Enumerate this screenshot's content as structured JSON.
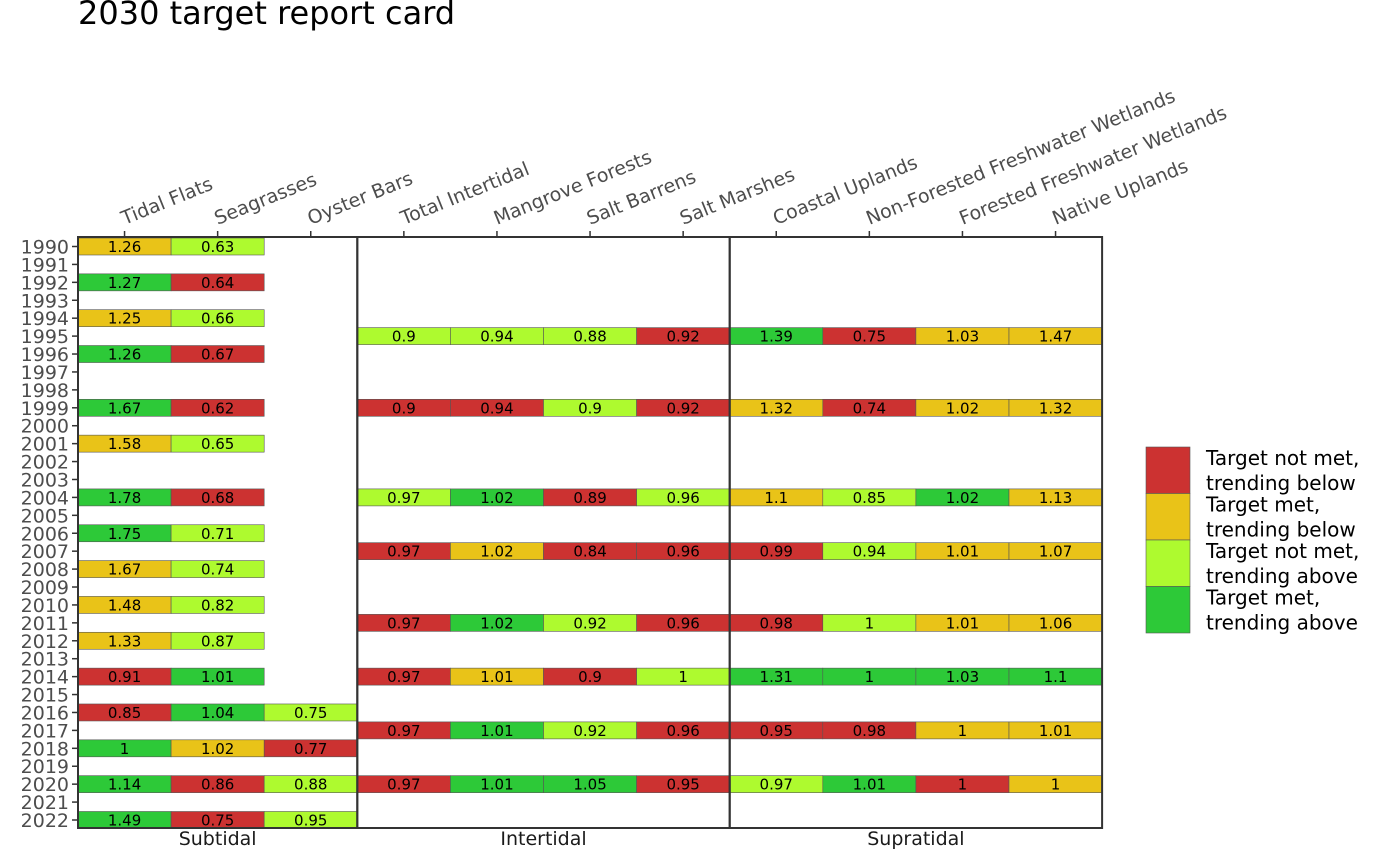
{
  "chart_data": {
    "type": "heatmap",
    "title": "2030 target report card",
    "years": [
      1990,
      1991,
      1992,
      1993,
      1994,
      1995,
      1996,
      1997,
      1998,
      1999,
      2000,
      2001,
      2002,
      2003,
      2004,
      2005,
      2006,
      2007,
      2008,
      2009,
      2010,
      2011,
      2012,
      2013,
      2014,
      2015,
      2016,
      2017,
      2018,
      2019,
      2020,
      2021,
      2022
    ],
    "columns": [
      "Tidal Flats",
      "Seagrasses",
      "Oyster Bars",
      "Total Intertidal",
      "Mangrove Forests",
      "Salt Barrens",
      "Salt Marshes",
      "Coastal Uplands",
      "Non-Forested Freshwater Wetlands",
      "Forested Freshwater Wetlands",
      "Native Uplands"
    ],
    "panels": [
      {
        "label": "Subtidal",
        "columns": [
          "Tidal Flats",
          "Seagrasses",
          "Oyster Bars"
        ]
      },
      {
        "label": "Intertidal",
        "columns": [
          "Total Intertidal",
          "Mangrove Forests",
          "Salt Barrens",
          "Salt Marshes"
        ]
      },
      {
        "label": "Supratidal",
        "columns": [
          "Coastal Uplands",
          "Non-Forested Freshwater Wetlands",
          "Forested Freshwater Wetlands",
          "Native Uplands"
        ]
      }
    ],
    "legend": {
      "position": "right",
      "entries": [
        {
          "key": "nmb",
          "label": [
            "Target not met,",
            "trending below"
          ],
          "color": "#CC3231"
        },
        {
          "key": "mb",
          "label": [
            "Target met,",
            "trending below"
          ],
          "color": "#E9C318"
        },
        {
          "key": "nma",
          "label": [
            "Target not met,",
            "trending above"
          ],
          "color": "#AEFA2F"
        },
        {
          "key": "ma",
          "label": [
            "Target met,",
            "trending above"
          ],
          "color": "#2DC938"
        }
      ]
    },
    "cells": [
      {
        "year": 1990,
        "column": "Tidal Flats",
        "value": "1.26",
        "status": "mb"
      },
      {
        "year": 1990,
        "column": "Seagrasses",
        "value": "0.63",
        "status": "nma"
      },
      {
        "year": 1992,
        "column": "Tidal Flats",
        "value": "1.27",
        "status": "ma"
      },
      {
        "year": 1992,
        "column": "Seagrasses",
        "value": "0.64",
        "status": "nmb"
      },
      {
        "year": 1994,
        "column": "Tidal Flats",
        "value": "1.25",
        "status": "mb"
      },
      {
        "year": 1994,
        "column": "Seagrasses",
        "value": "0.66",
        "status": "nma"
      },
      {
        "year": 1995,
        "column": "Total Intertidal",
        "value": "0.9",
        "status": "nma"
      },
      {
        "year": 1995,
        "column": "Mangrove Forests",
        "value": "0.94",
        "status": "nma"
      },
      {
        "year": 1995,
        "column": "Salt Barrens",
        "value": "0.88",
        "status": "nma"
      },
      {
        "year": 1995,
        "column": "Salt Marshes",
        "value": "0.92",
        "status": "nmb"
      },
      {
        "year": 1995,
        "column": "Coastal Uplands",
        "value": "1.39",
        "status": "ma"
      },
      {
        "year": 1995,
        "column": "Non-Forested Freshwater Wetlands",
        "value": "0.75",
        "status": "nmb"
      },
      {
        "year": 1995,
        "column": "Forested Freshwater Wetlands",
        "value": "1.03",
        "status": "mb"
      },
      {
        "year": 1995,
        "column": "Native Uplands",
        "value": "1.47",
        "status": "mb"
      },
      {
        "year": 1996,
        "column": "Tidal Flats",
        "value": "1.26",
        "status": "ma"
      },
      {
        "year": 1996,
        "column": "Seagrasses",
        "value": "0.67",
        "status": "nmb"
      },
      {
        "year": 1999,
        "column": "Tidal Flats",
        "value": "1.67",
        "status": "ma"
      },
      {
        "year": 1999,
        "column": "Seagrasses",
        "value": "0.62",
        "status": "nmb"
      },
      {
        "year": 1999,
        "column": "Total Intertidal",
        "value": "0.9",
        "status": "nmb"
      },
      {
        "year": 1999,
        "column": "Mangrove Forests",
        "value": "0.94",
        "status": "nmb"
      },
      {
        "year": 1999,
        "column": "Salt Barrens",
        "value": "0.9",
        "status": "nma"
      },
      {
        "year": 1999,
        "column": "Salt Marshes",
        "value": "0.92",
        "status": "nmb"
      },
      {
        "year": 1999,
        "column": "Coastal Uplands",
        "value": "1.32",
        "status": "mb"
      },
      {
        "year": 1999,
        "column": "Non-Forested Freshwater Wetlands",
        "value": "0.74",
        "status": "nmb"
      },
      {
        "year": 1999,
        "column": "Forested Freshwater Wetlands",
        "value": "1.02",
        "status": "mb"
      },
      {
        "year": 1999,
        "column": "Native Uplands",
        "value": "1.32",
        "status": "mb"
      },
      {
        "year": 2001,
        "column": "Tidal Flats",
        "value": "1.58",
        "status": "mb"
      },
      {
        "year": 2001,
        "column": "Seagrasses",
        "value": "0.65",
        "status": "nma"
      },
      {
        "year": 2004,
        "column": "Tidal Flats",
        "value": "1.78",
        "status": "ma"
      },
      {
        "year": 2004,
        "column": "Seagrasses",
        "value": "0.68",
        "status": "nmb"
      },
      {
        "year": 2004,
        "column": "Total Intertidal",
        "value": "0.97",
        "status": "nma"
      },
      {
        "year": 2004,
        "column": "Mangrove Forests",
        "value": "1.02",
        "status": "ma"
      },
      {
        "year": 2004,
        "column": "Salt Barrens",
        "value": "0.89",
        "status": "nmb"
      },
      {
        "year": 2004,
        "column": "Salt Marshes",
        "value": "0.96",
        "status": "nma"
      },
      {
        "year": 2004,
        "column": "Coastal Uplands",
        "value": "1.1",
        "status": "mb"
      },
      {
        "year": 2004,
        "column": "Non-Forested Freshwater Wetlands",
        "value": "0.85",
        "status": "nma"
      },
      {
        "year": 2004,
        "column": "Forested Freshwater Wetlands",
        "value": "1.02",
        "status": "ma"
      },
      {
        "year": 2004,
        "column": "Native Uplands",
        "value": "1.13",
        "status": "mb"
      },
      {
        "year": 2006,
        "column": "Tidal Flats",
        "value": "1.75",
        "status": "ma"
      },
      {
        "year": 2006,
        "column": "Seagrasses",
        "value": "0.71",
        "status": "nma"
      },
      {
        "year": 2007,
        "column": "Total Intertidal",
        "value": "0.97",
        "status": "nmb"
      },
      {
        "year": 2007,
        "column": "Mangrove Forests",
        "value": "1.02",
        "status": "mb"
      },
      {
        "year": 2007,
        "column": "Salt Barrens",
        "value": "0.84",
        "status": "nmb"
      },
      {
        "year": 2007,
        "column": "Salt Marshes",
        "value": "0.96",
        "status": "nmb"
      },
      {
        "year": 2007,
        "column": "Coastal Uplands",
        "value": "0.99",
        "status": "nmb"
      },
      {
        "year": 2007,
        "column": "Non-Forested Freshwater Wetlands",
        "value": "0.94",
        "status": "nma"
      },
      {
        "year": 2007,
        "column": "Forested Freshwater Wetlands",
        "value": "1.01",
        "status": "mb"
      },
      {
        "year": 2007,
        "column": "Native Uplands",
        "value": "1.07",
        "status": "mb"
      },
      {
        "year": 2008,
        "column": "Tidal Flats",
        "value": "1.67",
        "status": "mb"
      },
      {
        "year": 2008,
        "column": "Seagrasses",
        "value": "0.74",
        "status": "nma"
      },
      {
        "year": 2010,
        "column": "Tidal Flats",
        "value": "1.48",
        "status": "mb"
      },
      {
        "year": 2010,
        "column": "Seagrasses",
        "value": "0.82",
        "status": "nma"
      },
      {
        "year": 2011,
        "column": "Total Intertidal",
        "value": "0.97",
        "status": "nmb"
      },
      {
        "year": 2011,
        "column": "Mangrove Forests",
        "value": "1.02",
        "status": "ma"
      },
      {
        "year": 2011,
        "column": "Salt Barrens",
        "value": "0.92",
        "status": "nma"
      },
      {
        "year": 2011,
        "column": "Salt Marshes",
        "value": "0.96",
        "status": "nmb"
      },
      {
        "year": 2011,
        "column": "Coastal Uplands",
        "value": "0.98",
        "status": "nmb"
      },
      {
        "year": 2011,
        "column": "Non-Forested Freshwater Wetlands",
        "value": "1",
        "status": "nma"
      },
      {
        "year": 2011,
        "column": "Forested Freshwater Wetlands",
        "value": "1.01",
        "status": "mb"
      },
      {
        "year": 2011,
        "column": "Native Uplands",
        "value": "1.06",
        "status": "mb"
      },
      {
        "year": 2012,
        "column": "Tidal Flats",
        "value": "1.33",
        "status": "mb"
      },
      {
        "year": 2012,
        "column": "Seagrasses",
        "value": "0.87",
        "status": "nma"
      },
      {
        "year": 2014,
        "column": "Tidal Flats",
        "value": "0.91",
        "status": "nmb"
      },
      {
        "year": 2014,
        "column": "Seagrasses",
        "value": "1.01",
        "status": "ma"
      },
      {
        "year": 2014,
        "column": "Total Intertidal",
        "value": "0.97",
        "status": "nmb"
      },
      {
        "year": 2014,
        "column": "Mangrove Forests",
        "value": "1.01",
        "status": "mb"
      },
      {
        "year": 2014,
        "column": "Salt Barrens",
        "value": "0.9",
        "status": "nmb"
      },
      {
        "year": 2014,
        "column": "Salt Marshes",
        "value": "1",
        "status": "nma"
      },
      {
        "year": 2014,
        "column": "Coastal Uplands",
        "value": "1.31",
        "status": "ma"
      },
      {
        "year": 2014,
        "column": "Non-Forested Freshwater Wetlands",
        "value": "1",
        "status": "ma"
      },
      {
        "year": 2014,
        "column": "Forested Freshwater Wetlands",
        "value": "1.03",
        "status": "ma"
      },
      {
        "year": 2014,
        "column": "Native Uplands",
        "value": "1.1",
        "status": "ma"
      },
      {
        "year": 2016,
        "column": "Tidal Flats",
        "value": "0.85",
        "status": "nmb"
      },
      {
        "year": 2016,
        "column": "Seagrasses",
        "value": "1.04",
        "status": "ma"
      },
      {
        "year": 2016,
        "column": "Oyster Bars",
        "value": "0.75",
        "status": "nma"
      },
      {
        "year": 2017,
        "column": "Total Intertidal",
        "value": "0.97",
        "status": "nmb"
      },
      {
        "year": 2017,
        "column": "Mangrove Forests",
        "value": "1.01",
        "status": "ma"
      },
      {
        "year": 2017,
        "column": "Salt Barrens",
        "value": "0.92",
        "status": "nma"
      },
      {
        "year": 2017,
        "column": "Salt Marshes",
        "value": "0.96",
        "status": "nmb"
      },
      {
        "year": 2017,
        "column": "Coastal Uplands",
        "value": "0.95",
        "status": "nmb"
      },
      {
        "year": 2017,
        "column": "Non-Forested Freshwater Wetlands",
        "value": "0.98",
        "status": "nmb"
      },
      {
        "year": 2017,
        "column": "Forested Freshwater Wetlands",
        "value": "1",
        "status": "mb"
      },
      {
        "year": 2017,
        "column": "Native Uplands",
        "value": "1.01",
        "status": "mb"
      },
      {
        "year": 2018,
        "column": "Tidal Flats",
        "value": "1",
        "status": "ma"
      },
      {
        "year": 2018,
        "column": "Seagrasses",
        "value": "1.02",
        "status": "mb"
      },
      {
        "year": 2018,
        "column": "Oyster Bars",
        "value": "0.77",
        "status": "nmb"
      },
      {
        "year": 2020,
        "column": "Tidal Flats",
        "value": "1.14",
        "status": "ma"
      },
      {
        "year": 2020,
        "column": "Seagrasses",
        "value": "0.86",
        "status": "nmb"
      },
      {
        "year": 2020,
        "column": "Oyster Bars",
        "value": "0.88",
        "status": "nma"
      },
      {
        "year": 2020,
        "column": "Total Intertidal",
        "value": "0.97",
        "status": "nmb"
      },
      {
        "year": 2020,
        "column": "Mangrove Forests",
        "value": "1.01",
        "status": "ma"
      },
      {
        "year": 2020,
        "column": "Salt Barrens",
        "value": "1.05",
        "status": "ma"
      },
      {
        "year": 2020,
        "column": "Salt Marshes",
        "value": "0.95",
        "status": "nmb"
      },
      {
        "year": 2020,
        "column": "Coastal Uplands",
        "value": "0.97",
        "status": "nma"
      },
      {
        "year": 2020,
        "column": "Non-Forested Freshwater Wetlands",
        "value": "1.01",
        "status": "ma"
      },
      {
        "year": 2020,
        "column": "Forested Freshwater Wetlands",
        "value": "1",
        "status": "nmb"
      },
      {
        "year": 2020,
        "column": "Native Uplands",
        "value": "1",
        "status": "mb"
      },
      {
        "year": 2022,
        "column": "Tidal Flats",
        "value": "1.49",
        "status": "ma"
      },
      {
        "year": 2022,
        "column": "Seagrasses",
        "value": "0.75",
        "status": "nmb"
      },
      {
        "year": 2022,
        "column": "Oyster Bars",
        "value": "0.95",
        "status": "nma"
      }
    ]
  }
}
